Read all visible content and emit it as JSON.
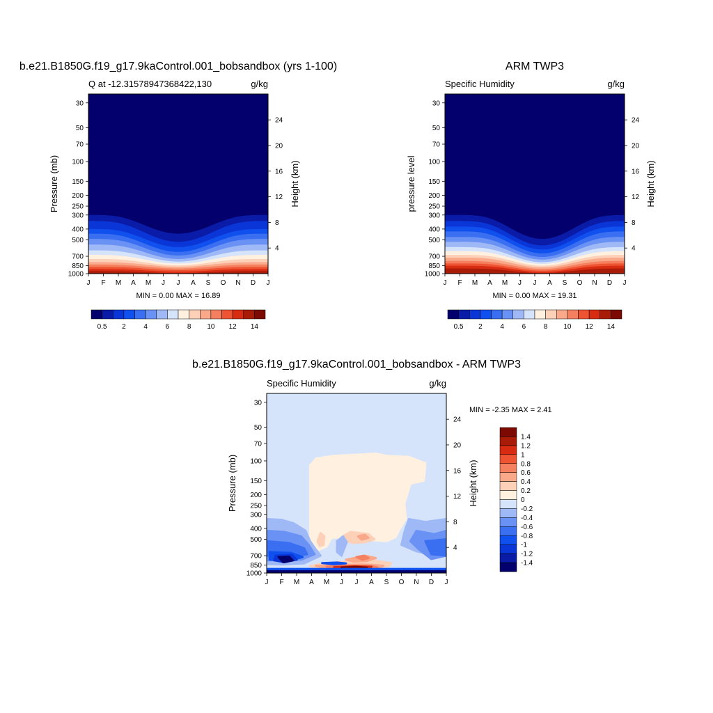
{
  "chart_data": [
    {
      "type": "contour",
      "title": "b.e21.B1850G.f19_g17.9kaControl.001_bobsandbox (yrs 1-100)",
      "left_subtitle": "Q at -12.31578947368422,130",
      "right_subtitle": "g/kg",
      "ylabel": "Pressure (mb)",
      "y2label": "Height (km)",
      "stats": "MIN =   0.00 MAX =  16.89",
      "contours": [
        {
          "top": 300,
          "peak": 440,
          "month": 7,
          "sharp": 1.9
        },
        {
          "top": 340,
          "peak": 520,
          "month": 7,
          "sharp": 1.9
        },
        {
          "top": 400,
          "peak": 580,
          "month": 7,
          "sharp": 1.9
        },
        {
          "top": 440,
          "peak": 640,
          "month": 7,
          "sharp": 1.9
        },
        {
          "top": 490,
          "peak": 690,
          "month": 7,
          "sharp": 1.9
        },
        {
          "top": 550,
          "peak": 740,
          "month": 7,
          "sharp": 1.9
        },
        {
          "top": 620,
          "peak": 780,
          "month": 7,
          "sharp": 1.9
        },
        {
          "top": 680,
          "peak": 815,
          "month": 7,
          "sharp": 1.9
        },
        {
          "top": 740,
          "peak": 845,
          "month": 7,
          "sharp": 1.9
        },
        {
          "top": 790,
          "peak": 870,
          "month": 7,
          "sharp": 1.9
        },
        {
          "top": 830,
          "peak": 900,
          "month": 7,
          "sharp": 1.9
        },
        {
          "top": 870,
          "peak": 930,
          "month": 7,
          "sharp": 1.9
        },
        {
          "top": 910,
          "peak": 960,
          "month": 7,
          "sharp": 1.9
        },
        {
          "top": 950,
          "peak": 990,
          "month": 7,
          "sharp": 1.9
        }
      ]
    },
    {
      "type": "contour",
      "title": "ARM TWP3",
      "left_subtitle": "Specific Humidity",
      "right_subtitle": "g/kg",
      "ylabel": "pressure level",
      "y2label": "Height (km)",
      "stats": "MIN =   0.00 MAX =  19.31",
      "contours": [
        {
          "top": 300,
          "peak": 490,
          "month": 7.5,
          "sharp": 2.2
        },
        {
          "top": 340,
          "peak": 560,
          "month": 7.5,
          "sharp": 2.2
        },
        {
          "top": 380,
          "peak": 610,
          "month": 7.5,
          "sharp": 2.2
        },
        {
          "top": 420,
          "peak": 660,
          "month": 7.5,
          "sharp": 2.2
        },
        {
          "top": 470,
          "peak": 710,
          "month": 7.5,
          "sharp": 2.2
        },
        {
          "top": 520,
          "peak": 750,
          "month": 7.5,
          "sharp": 2.2
        },
        {
          "top": 580,
          "peak": 790,
          "month": 7.5,
          "sharp": 2.2
        },
        {
          "top": 630,
          "peak": 820,
          "month": 7.5,
          "sharp": 2.2
        },
        {
          "top": 680,
          "peak": 850,
          "month": 7.5,
          "sharp": 2.2
        },
        {
          "top": 720,
          "peak": 880,
          "month": 7.5,
          "sharp": 2.2
        },
        {
          "top": 770,
          "peak": 910,
          "month": 7.5,
          "sharp": 2.2
        },
        {
          "top": 810,
          "peak": 940,
          "month": 7.5,
          "sharp": 2.2
        },
        {
          "top": 850,
          "peak": 965,
          "month": 7.5,
          "sharp": 2.2
        },
        {
          "top": 900,
          "peak": 990,
          "month": 7.5,
          "sharp": 2.2
        }
      ]
    },
    {
      "type": "contour",
      "title": "b.e21.B1850G.f19_g17.9kaControl.001_bobsandbox - ARM TWP3",
      "left_subtitle": "Specific Humidity",
      "right_subtitle": "g/kg",
      "ylabel": "Pressure (mb)",
      "y2label": "Height (km)",
      "stats": "MIN =  -2.35 MAX =   2.41",
      "background_level": "-0.2 to 0",
      "blobs": [
        {
          "level": "0 to 0.2",
          "points": [
            [
              3.9,
              540
            ],
            [
              3.9,
              110
            ],
            [
              4.3,
              95
            ],
            [
              5.5,
              90
            ],
            [
              7,
              88
            ],
            [
              8.3,
              86
            ],
            [
              9,
              90
            ],
            [
              10.5,
              92
            ],
            [
              11.6,
              105
            ],
            [
              11.5,
              150
            ],
            [
              10.6,
              160
            ],
            [
              10.2,
              240
            ],
            [
              10.3,
              330
            ],
            [
              9.9,
              400
            ],
            [
              9.6,
              480
            ],
            [
              9,
              520
            ],
            [
              8.1,
              510
            ],
            [
              7,
              500
            ],
            [
              6.3,
              520
            ],
            [
              5.7,
              480
            ],
            [
              5.3,
              490
            ],
            [
              5,
              580
            ],
            [
              4.5,
              620
            ],
            [
              4.1,
              600
            ]
          ]
        },
        {
          "level": "0.2 to 0.4",
          "points": [
            [
              4.4,
              520
            ],
            [
              4.6,
              440
            ],
            [
              4.85,
              470
            ],
            [
              4.8,
              560
            ],
            [
              4.55,
              575
            ]
          ]
        },
        {
          "level": "0.2 to 0.4",
          "points": [
            [
              6.1,
              470
            ],
            [
              6.6,
              430
            ],
            [
              7.8,
              450
            ],
            [
              8.2,
              500
            ],
            [
              7.6,
              530
            ],
            [
              6.8,
              540
            ],
            [
              6.3,
              515
            ]
          ]
        },
        {
          "level": "0.2 to 0.4",
          "points": [
            [
              3.9,
              865
            ],
            [
              4.5,
              835
            ],
            [
              5.8,
              800
            ],
            [
              7.2,
              770
            ],
            [
              8.4,
              780
            ],
            [
              9.3,
              815
            ],
            [
              9.2,
              865
            ],
            [
              8.2,
              900
            ],
            [
              6.3,
              920
            ],
            [
              4.5,
              900
            ]
          ]
        },
        {
          "level": "0.4 to 0.6",
          "points": [
            [
              7.1,
              470
            ],
            [
              7.55,
              455
            ],
            [
              7.8,
              485
            ],
            [
              7.35,
              505
            ]
          ]
        },
        {
          "level": "0.4 to 0.6",
          "points": [
            [
              6.3,
              760
            ],
            [
              7.6,
              700
            ],
            [
              8.3,
              735
            ],
            [
              7.7,
              780
            ],
            [
              6.8,
              790
            ]
          ]
        },
        {
          "level": "0.4 to 0.6",
          "points": [
            [
              4.3,
              860
            ],
            [
              6,
              845
            ],
            [
              7.6,
              840
            ],
            [
              8.8,
              860
            ],
            [
              8.5,
              900
            ],
            [
              6.7,
              920
            ],
            [
              5,
              910
            ]
          ]
        },
        {
          "level": "0.6 to 0.8",
          "points": [
            [
              7,
              720
            ],
            [
              7.5,
              700
            ],
            [
              7.8,
              735
            ],
            [
              7.4,
              760
            ]
          ]
        },
        {
          "level": "0.6 to 0.8",
          "points": [
            [
              5,
              875
            ],
            [
              6.5,
              860
            ],
            [
              8,
              865
            ],
            [
              8.4,
              890
            ],
            [
              7.2,
              915
            ],
            [
              5.6,
              915
            ]
          ]
        },
        {
          "level": "1 to 1.2",
          "points": [
            [
              5.5,
              885
            ],
            [
              6.8,
              870
            ],
            [
              8,
              880
            ],
            [
              7.6,
              905
            ],
            [
              6.2,
              910
            ]
          ]
        },
        {
          "level": "1.4 to 2.41",
          "points": [
            [
              6,
              892
            ],
            [
              7,
              880
            ],
            [
              7.7,
              895
            ],
            [
              6.8,
              908
            ]
          ]
        },
        {
          "level": "-0.4 to -0.2",
          "points": [
            [
              1,
              330
            ],
            [
              2,
              335
            ],
            [
              2.8,
              360
            ],
            [
              3.6,
              420
            ],
            [
              3.9,
              520
            ],
            [
              4.3,
              620
            ],
            [
              4.6,
              700
            ],
            [
              3.5,
              820
            ],
            [
              2,
              840
            ],
            [
              1,
              830
            ]
          ]
        },
        {
          "level": "-0.4 to -0.2",
          "points": [
            [
              10.5,
              330
            ],
            [
              11.6,
              350
            ],
            [
              13,
              330
            ],
            [
              13,
              620
            ],
            [
              12.3,
              700
            ],
            [
              11,
              640
            ],
            [
              10,
              560
            ],
            [
              10.2,
              430
            ]
          ]
        },
        {
          "level": "-0.4 to -0.2",
          "points": [
            [
              5.7,
              520
            ],
            [
              6.1,
              470
            ],
            [
              6.35,
              530
            ],
            [
              6,
              700
            ],
            [
              5.7,
              650
            ]
          ]
        },
        {
          "level": "-0.6 to -0.4",
          "points": [
            [
              1,
              420
            ],
            [
              2.2,
              430
            ],
            [
              3.3,
              470
            ],
            [
              3.8,
              560
            ],
            [
              4.2,
              680
            ],
            [
              3.3,
              760
            ],
            [
              1,
              770
            ]
          ]
        },
        {
          "level": "-0.6 to -0.4",
          "points": [
            [
              11,
              420
            ],
            [
              12.2,
              450
            ],
            [
              13,
              420
            ],
            [
              13,
              700
            ],
            [
              12,
              750
            ],
            [
              11.2,
              620
            ],
            [
              10.6,
              520
            ]
          ]
        },
        {
          "level": "-0.8 to -0.6",
          "points": [
            [
              1,
              520
            ],
            [
              2.5,
              540
            ],
            [
              3.5,
              600
            ],
            [
              3.7,
              680
            ],
            [
              2.5,
              720
            ],
            [
              1,
              700
            ]
          ]
        },
        {
          "level": "-0.8 to -0.6",
          "points": [
            [
              11.6,
              520
            ],
            [
              13,
              500
            ],
            [
              13,
              700
            ],
            [
              12,
              680
            ]
          ]
        },
        {
          "level": "-1 to -0.8",
          "points": [
            [
              1.2,
              650
            ],
            [
              2.6,
              660
            ],
            [
              3.4,
              720
            ],
            [
              2.5,
              780
            ],
            [
              1.2,
              760
            ]
          ]
        },
        {
          "level": "-1 to -0.8",
          "points": [
            [
              4.7,
              815
            ],
            [
              5.7,
              805
            ],
            [
              6.3,
              820
            ],
            [
              5.5,
              835
            ]
          ]
        },
        {
          "level": "-1 to -0.8",
          "points": [
            [
              1,
              920
            ],
            [
              13,
              920
            ],
            [
              13,
              1000
            ],
            [
              1,
              1000
            ]
          ]
        },
        {
          "level": "-1.2 to -1",
          "points": [
            [
              1.6,
              700
            ],
            [
              2.7,
              690
            ],
            [
              3,
              760
            ],
            [
              2.2,
              800
            ],
            [
              1.5,
              770
            ]
          ]
        },
        {
          "level": "-2.35 to -1.4",
          "points": [
            [
              1.8,
              720
            ],
            [
              2.5,
              715
            ],
            [
              2.75,
              770
            ],
            [
              2.1,
              800
            ]
          ]
        },
        {
          "level": "-2.35 to -1.4",
          "points": [
            [
              1,
              965
            ],
            [
              13,
              965
            ],
            [
              13,
              1000
            ],
            [
              1,
              1000
            ]
          ]
        }
      ]
    }
  ],
  "shared": {
    "months": [
      "J",
      "F",
      "M",
      "A",
      "M",
      "J",
      "J",
      "A",
      "S",
      "O",
      "N",
      "D",
      "J"
    ],
    "pressure_ticks": [
      "30",
      "50",
      "70",
      "100",
      "150",
      "200",
      "250",
      "300",
      "400",
      "500",
      "700",
      "850",
      "1000"
    ],
    "height_ticks": [
      "4",
      "8",
      "12",
      "16",
      "20",
      "24"
    ],
    "ptop": 25,
    "pbot": 1000
  },
  "full_scale": {
    "labels": [
      "0.5",
      "2",
      "4",
      "6",
      "8",
      "10",
      "12",
      "14"
    ],
    "colors": [
      "#03006d",
      "#0a1ca7",
      "#0b36d7",
      "#0f50ee",
      "#3a6ff2",
      "#6a92f4",
      "#9fb8f6",
      "#d5e3fb",
      "#fff0e0",
      "#fdd0b8",
      "#f9a88a",
      "#f5805f",
      "#ef5432",
      "#d72c12",
      "#a71b07",
      "#7c0902"
    ]
  },
  "diff_scale": {
    "levels": [
      "1.4",
      "1.2",
      "1",
      "0.8",
      "0.6",
      "0.4",
      "0.2",
      "0",
      "-0.2",
      "-0.4",
      "-0.6",
      "-0.8",
      "-1",
      "-1.2",
      "-1.4"
    ],
    "colors": [
      "#7c0902",
      "#a71b07",
      "#d72c12",
      "#ef5432",
      "#f5805f",
      "#f9a88a",
      "#fdd0b8",
      "#fff0e0",
      "#d5e3fb",
      "#9fb8f6",
      "#6a92f4",
      "#3a6ff2",
      "#0f50ee",
      "#0b36d7",
      "#0a1ca7",
      "#03006d"
    ]
  }
}
